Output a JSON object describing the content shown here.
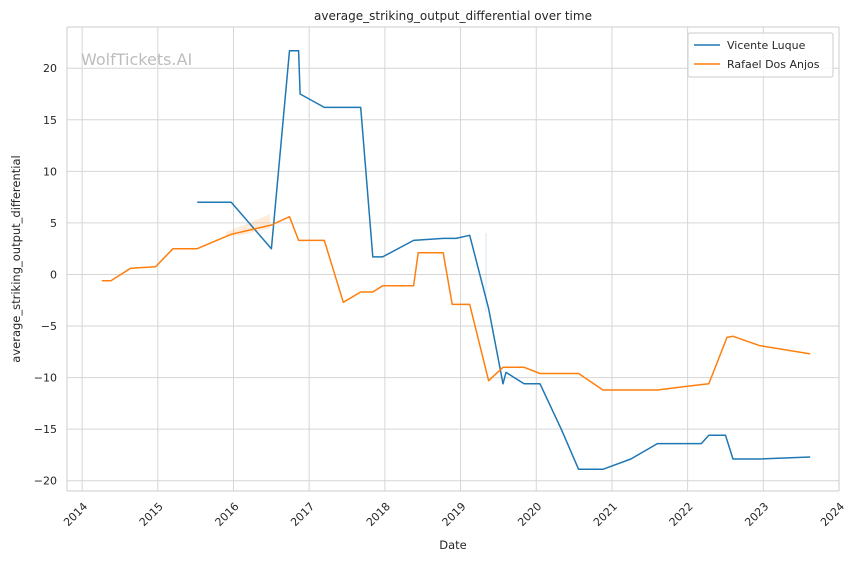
{
  "chart_data": {
    "type": "line",
    "title": "average_striking_output_differential over time",
    "xlabel": "Date",
    "ylabel": "average_striking_output_differential",
    "watermark": "WolfTickets.AI",
    "xlim": [
      2013.8,
      2024.0
    ],
    "ylim": [
      -21,
      24
    ],
    "x_ticks": [
      2014,
      2015,
      2016,
      2017,
      2018,
      2019,
      2020,
      2021,
      2022,
      2023,
      2024
    ],
    "x_tick_labels": [
      "2014",
      "2015",
      "2016",
      "2017",
      "2018",
      "2019",
      "2020",
      "2021",
      "2022",
      "2023",
      "2024"
    ],
    "y_ticks": [
      -20,
      -15,
      -10,
      -5,
      0,
      5,
      10,
      15,
      20
    ],
    "y_tick_labels": [
      "−20",
      "−15",
      "−10",
      "−5",
      "0",
      "5",
      "10",
      "15",
      "20"
    ],
    "grid": true,
    "legend_position": "top-right",
    "series": [
      {
        "name": "Vicente Luque",
        "color": "#1f77b4",
        "x": [
          2015.52,
          2015.97,
          2016.5,
          2016.74,
          2016.86,
          2016.88,
          2017.2,
          2017.68,
          2017.84,
          2017.97,
          2018.38,
          2018.77,
          2018.94,
          2019.12,
          2019.37,
          2019.56,
          2019.6,
          2019.84,
          2020.05,
          2020.33,
          2020.56,
          2020.88,
          2021.25,
          2021.6,
          2022.18,
          2022.28,
          2022.5,
          2022.6,
          2022.95,
          2023.62
        ],
        "y": [
          7.0,
          7.0,
          2.5,
          21.7,
          21.7,
          17.5,
          16.2,
          16.2,
          1.7,
          1.7,
          3.3,
          3.5,
          3.5,
          3.8,
          -3.3,
          -10.6,
          -9.5,
          -10.6,
          -10.6,
          -15.0,
          -18.9,
          -18.9,
          -17.9,
          -16.4,
          -16.4,
          -15.6,
          -15.6,
          -17.9,
          -17.9,
          -17.7
        ]
      },
      {
        "name": "Rafael Dos Anjos",
        "color": "#ff7f0e",
        "x": [
          2014.26,
          2014.38,
          2014.64,
          2014.97,
          2015.2,
          2015.52,
          2015.97,
          2016.5,
          2016.74,
          2016.86,
          2017.2,
          2017.45,
          2017.68,
          2017.84,
          2017.97,
          2018.38,
          2018.44,
          2018.77,
          2018.89,
          2019.12,
          2019.37,
          2019.56,
          2019.84,
          2020.05,
          2020.56,
          2020.88,
          2021.6,
          2022.05,
          2022.28,
          2022.52,
          2022.6,
          2022.95,
          2023.62
        ],
        "y": [
          -0.6,
          -0.6,
          0.6,
          0.75,
          2.5,
          2.5,
          3.9,
          4.8,
          5.6,
          3.3,
          3.3,
          -2.7,
          -1.7,
          -1.7,
          -1.1,
          -1.1,
          2.1,
          2.1,
          -2.9,
          -2.9,
          -10.3,
          -9.0,
          -9.0,
          -9.6,
          -9.6,
          -11.2,
          -11.2,
          -10.8,
          -10.6,
          -6.1,
          -6.0,
          -6.9,
          -7.7
        ]
      }
    ]
  }
}
